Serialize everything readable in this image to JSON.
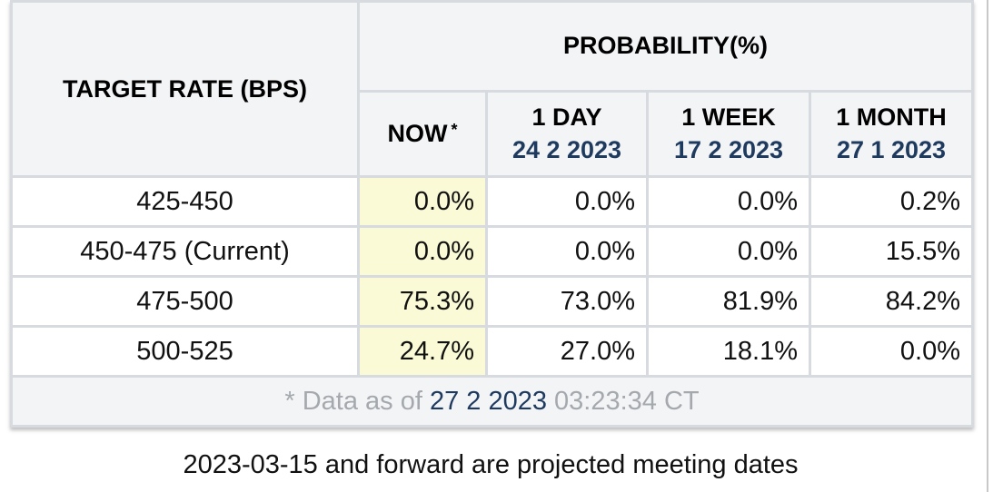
{
  "table": {
    "target_header": "TARGET RATE (BPS)",
    "prob_header": "PROBABILITY(%)",
    "columns": [
      {
        "label": "NOW",
        "date": "",
        "marker": "*"
      },
      {
        "label": "1 DAY",
        "date": "24 2 2023",
        "marker": ""
      },
      {
        "label": "1 WEEK",
        "date": "17 2 2023",
        "marker": ""
      },
      {
        "label": "1 MONTH",
        "date": "27 1 2023",
        "marker": ""
      }
    ],
    "rows": [
      {
        "rate": "425-450",
        "values": [
          "0.0%",
          "0.0%",
          "0.0%",
          "0.2%"
        ]
      },
      {
        "rate": "450-475 (Current)",
        "values": [
          "0.0%",
          "0.0%",
          "0.0%",
          "15.5%"
        ]
      },
      {
        "rate": "475-500",
        "values": [
          "75.3%",
          "73.0%",
          "81.9%",
          "84.2%"
        ]
      },
      {
        "rate": "500-525",
        "values": [
          "24.7%",
          "27.0%",
          "18.1%",
          "0.0%"
        ]
      }
    ],
    "footnote": {
      "prefix": "* Data as of ",
      "date": "27 2 2023",
      "time": " 03:23:34 CT"
    }
  },
  "caption": "2023-03-15 and forward are projected meeting dates",
  "colors": {
    "header_bg": "#f3f4f6",
    "now_column_bg": "#fafad6",
    "date_text": "#1e3a5f",
    "border": "#d7dbe0"
  }
}
